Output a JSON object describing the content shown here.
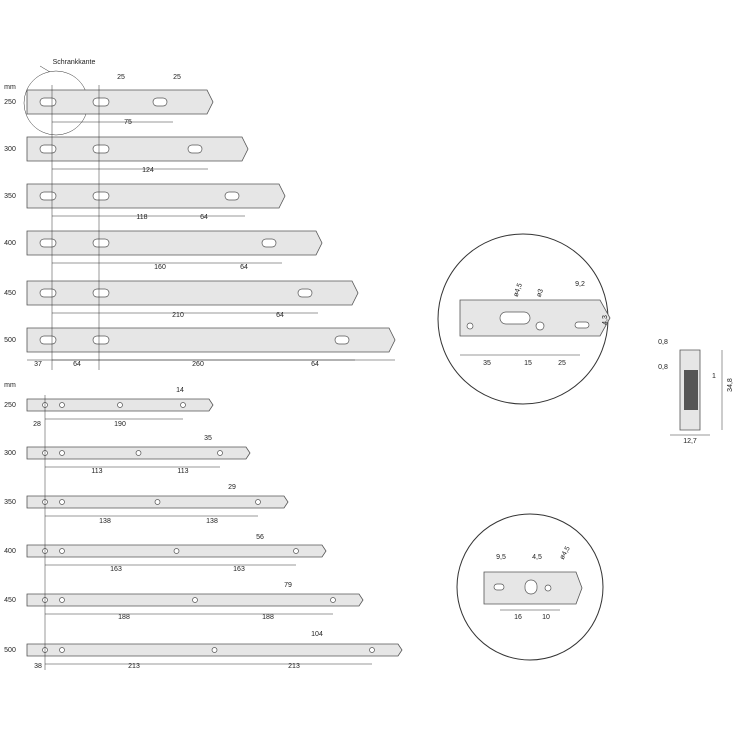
{
  "top": {
    "unit": "mm",
    "edge_label": "Schrankkante",
    "rails": [
      {
        "length": "250",
        "dims": [
          "25",
          "25",
          "75"
        ]
      },
      {
        "length": "300",
        "dims": [
          "124"
        ]
      },
      {
        "length": "350",
        "dims": [
          "118",
          "64"
        ]
      },
      {
        "length": "400",
        "dims": [
          "160",
          "64"
        ]
      },
      {
        "length": "450",
        "dims": [
          "210",
          "64"
        ]
      },
      {
        "length": "500",
        "dims": [
          "37",
          "64",
          "260",
          "64"
        ]
      }
    ]
  },
  "bottom": {
    "unit": "mm",
    "rails": [
      {
        "length": "250",
        "dims": [
          "14",
          "28",
          "190"
        ]
      },
      {
        "length": "300",
        "dims": [
          "35",
          "113",
          "113"
        ]
      },
      {
        "length": "350",
        "dims": [
          "29",
          "138",
          "138"
        ]
      },
      {
        "length": "400",
        "dims": [
          "56",
          "163",
          "163"
        ]
      },
      {
        "length": "450",
        "dims": [
          "79",
          "188",
          "188"
        ]
      },
      {
        "length": "500",
        "dims": [
          "104",
          "38",
          "213",
          "213"
        ]
      }
    ]
  },
  "front_detail": {
    "labels": [
      "ø4,5",
      "ø3",
      "9,2",
      "4,3",
      "35",
      "15",
      "25"
    ]
  },
  "profile": {
    "labels": [
      "0,8",
      "0,8",
      "1",
      "34,8",
      "12,7"
    ]
  },
  "rear_detail": {
    "labels": [
      "9,5",
      "4,5",
      "ø4,5",
      "16",
      "10"
    ]
  }
}
